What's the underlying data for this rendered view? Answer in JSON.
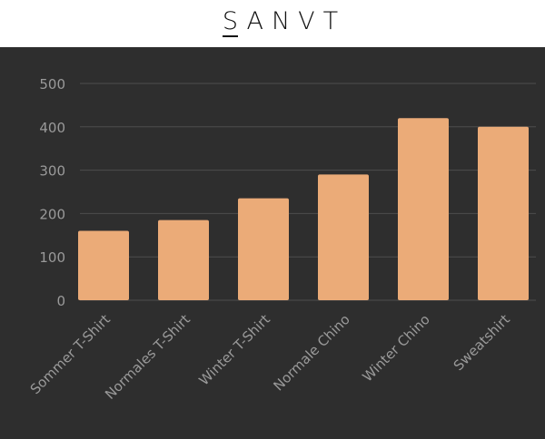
{
  "header": {
    "brand": "SANVT"
  },
  "chart_data": {
    "type": "bar",
    "categories": [
      "Sommer T-Shirt",
      "Normales T-Shirt",
      "Winter T-Shirt",
      "Normale Chino",
      "Winter Chino",
      "Sweatshirt"
    ],
    "values": [
      160,
      185,
      235,
      290,
      420,
      400
    ],
    "color": "#ebab78",
    "ylim": [
      0,
      500
    ],
    "yticks": [
      0,
      100,
      200,
      300,
      400,
      500
    ],
    "grid": true
  }
}
